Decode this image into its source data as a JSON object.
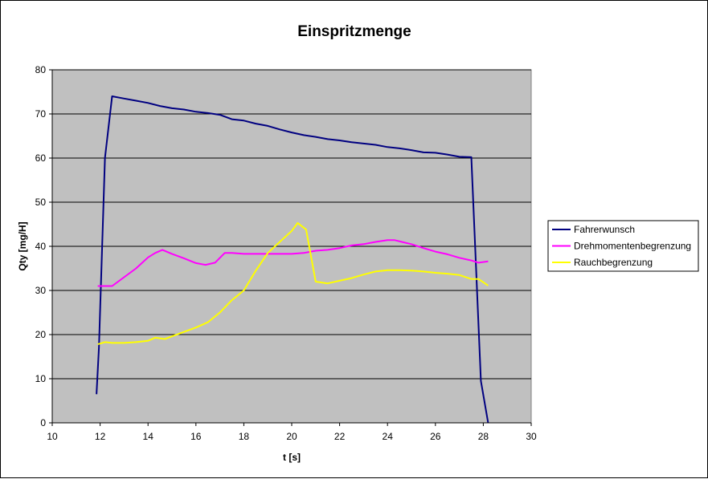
{
  "chart_data": {
    "type": "line",
    "title": "Einspritzmenge",
    "xlabel": "t [s]",
    "ylabel": "Qty [mg/H]",
    "xlim": [
      10,
      30
    ],
    "ylim": [
      0,
      80
    ],
    "xticks": [
      10,
      12,
      14,
      16,
      18,
      20,
      22,
      24,
      26,
      28,
      30
    ],
    "yticks": [
      0,
      10,
      20,
      30,
      40,
      50,
      60,
      70,
      80
    ],
    "grid": "horizontal",
    "plot_background": "#c0c0c0",
    "legend_position": "right",
    "series": [
      {
        "name": "Fahrerwunsch",
        "color": "#000080",
        "x": [
          11.85,
          11.95,
          12.2,
          12.5,
          13.0,
          13.5,
          14.0,
          14.5,
          15.0,
          15.5,
          16.0,
          16.5,
          17.0,
          17.5,
          18.0,
          18.5,
          19.0,
          19.5,
          20.0,
          20.5,
          21.0,
          21.5,
          22.0,
          22.5,
          23.0,
          23.5,
          24.0,
          24.5,
          25.0,
          25.5,
          26.0,
          26.5,
          27.0,
          27.5,
          27.9,
          28.2
        ],
        "y": [
          6.5,
          17,
          60,
          74,
          73.5,
          73,
          72.5,
          71.8,
          71.3,
          71,
          70.5,
          70.2,
          69.8,
          68.8,
          68.5,
          67.8,
          67.3,
          66.5,
          65.8,
          65.2,
          64.8,
          64.3,
          64,
          63.6,
          63.3,
          63,
          62.5,
          62.2,
          61.8,
          61.3,
          61.2,
          60.8,
          60.3,
          60.2,
          9.5,
          0
        ]
      },
      {
        "name": "Drehmomentenbegrenzung",
        "color": "#ff00ff",
        "x": [
          11.9,
          12.5,
          13.0,
          13.5,
          14.0,
          14.3,
          14.6,
          15.0,
          15.5,
          16.0,
          16.4,
          16.8,
          17.2,
          17.5,
          18.0,
          18.5,
          19.0,
          19.5,
          20.0,
          20.5,
          21.0,
          21.5,
          22.0,
          22.5,
          23.0,
          23.5,
          24.0,
          24.3,
          24.6,
          25.0,
          25.5,
          26.0,
          26.5,
          27.0,
          27.5,
          27.8,
          28.2
        ],
        "y": [
          31,
          31,
          33,
          35,
          37.5,
          38.5,
          39.2,
          38.3,
          37.3,
          36.2,
          35.8,
          36.3,
          38.5,
          38.5,
          38.3,
          38.3,
          38.3,
          38.3,
          38.3,
          38.5,
          39,
          39.2,
          39.6,
          40.2,
          40.5,
          41,
          41.4,
          41.4,
          41,
          40.5,
          39.6,
          38.8,
          38.2,
          37.4,
          36.8,
          36.3,
          36.6
        ]
      },
      {
        "name": "Rauchbegrenzung",
        "color": "#ffff00",
        "x": [
          11.9,
          12.2,
          12.5,
          13.0,
          13.5,
          14.0,
          14.3,
          14.7,
          15.0,
          15.5,
          16.0,
          16.5,
          17.0,
          17.5,
          18.0,
          18.5,
          19.0,
          19.5,
          20.0,
          20.25,
          20.6,
          21.0,
          21.5,
          22.0,
          22.5,
          23.0,
          23.5,
          24.0,
          24.5,
          25.0,
          25.5,
          26.0,
          26.5,
          27.0,
          27.5,
          27.8,
          28.2
        ],
        "y": [
          17.8,
          18.3,
          18.1,
          18.1,
          18.3,
          18.6,
          19.3,
          19,
          19.6,
          20.6,
          21.6,
          22.8,
          25,
          27.8,
          30,
          34.5,
          38.5,
          41,
          43.5,
          45.3,
          43.8,
          32,
          31.6,
          32.2,
          32.8,
          33.6,
          34.3,
          34.6,
          34.6,
          34.5,
          34.3,
          34,
          33.8,
          33.5,
          32.6,
          32.6,
          31.1
        ]
      }
    ]
  }
}
